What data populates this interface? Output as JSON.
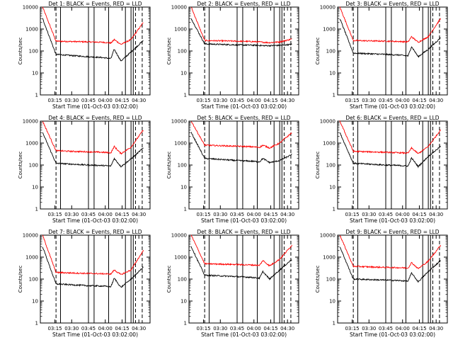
{
  "figure": {
    "background": "#ffffff"
  },
  "common": {
    "xlabel": "Start Time (01-Oct-03 03:02:00)",
    "ylabel": "Counts/sec",
    "xticks": [
      "03:15",
      "03:30",
      "03:45",
      "04:00",
      "04:15",
      "04:30"
    ],
    "yticks": [
      "1",
      "10",
      "100",
      "1000",
      "10000"
    ],
    "colors": {
      "events": "#000000",
      "lld": "#ff0000"
    },
    "markers": {
      "dashed": [
        "03:16",
        "04:27",
        "04:33"
      ],
      "solid": [
        "03:20",
        "03:45",
        "03:50",
        "04:03",
        "04:18",
        "04:23",
        "04:25"
      ]
    }
  },
  "chart_data": [
    {
      "type": "line",
      "title": "Det 1: BLACK = Events, RED = LLD",
      "yscale": "log",
      "ylim": [
        1,
        10000
      ],
      "xlim": [
        "03:02",
        "04:40"
      ],
      "series": [
        {
          "name": "Events",
          "color": "#000000",
          "values": [
            3000,
            70,
            62,
            55,
            50,
            45,
            120,
            35,
            90,
            300
          ]
        },
        {
          "name": "LLD",
          "color": "#ff0000",
          "values": [
            10000,
            280,
            270,
            260,
            250,
            230,
            330,
            200,
            330,
            2000
          ]
        }
      ]
    },
    {
      "type": "line",
      "title": "Det 2: BLACK = Events, RED = LLD",
      "yscale": "log",
      "ylim": [
        1,
        10000
      ],
      "xlim": [
        "03:02",
        "04:40"
      ],
      "series": [
        {
          "name": "Events",
          "color": "#000000",
          "values": [
            3000,
            210,
            200,
            190,
            185,
            180,
            175,
            175,
            180,
            200
          ]
        },
        {
          "name": "LLD",
          "color": "#ff0000",
          "values": [
            10000,
            300,
            290,
            280,
            270,
            260,
            250,
            240,
            260,
            350
          ]
        }
      ]
    },
    {
      "type": "line",
      "title": "Det 3: BLACK = Events, RED = LLD",
      "yscale": "log",
      "ylim": [
        1,
        10000
      ],
      "xlim": [
        "03:02",
        "04:40"
      ],
      "series": [
        {
          "name": "Events",
          "color": "#000000",
          "values": [
            3000,
            80,
            75,
            70,
            65,
            60,
            160,
            55,
            120,
            400
          ]
        },
        {
          "name": "LLD",
          "color": "#ff0000",
          "values": [
            10000,
            300,
            290,
            280,
            270,
            260,
            450,
            250,
            450,
            3000
          ]
        }
      ]
    },
    {
      "type": "line",
      "title": "Det 4: BLACK = Events, RED = LLD",
      "yscale": "log",
      "ylim": [
        1,
        10000
      ],
      "xlim": [
        "03:02",
        "04:40"
      ],
      "series": [
        {
          "name": "Events",
          "color": "#000000",
          "values": [
            3000,
            120,
            110,
            100,
            95,
            90,
            200,
            85,
            190,
            600
          ]
        },
        {
          "name": "LLD",
          "color": "#ff0000",
          "values": [
            10000,
            450,
            420,
            400,
            380,
            360,
            700,
            330,
            650,
            4000
          ]
        }
      ]
    },
    {
      "type": "line",
      "title": "Det 5: BLACK = Events, RED = LLD",
      "yscale": "log",
      "ylim": [
        1,
        10000
      ],
      "xlim": [
        "03:02",
        "04:40"
      ],
      "series": [
        {
          "name": "Events",
          "color": "#000000",
          "values": [
            3000,
            200,
            180,
            160,
            150,
            140,
            200,
            130,
            160,
            300
          ]
        },
        {
          "name": "LLD",
          "color": "#ff0000",
          "values": [
            10000,
            800,
            760,
            720,
            680,
            640,
            800,
            600,
            1000,
            3000
          ]
        }
      ]
    },
    {
      "type": "line",
      "title": "Det 6: BLACK = Events, RED = LLD",
      "yscale": "log",
      "ylim": [
        1,
        10000
      ],
      "xlim": [
        "03:02",
        "04:40"
      ],
      "series": [
        {
          "name": "Events",
          "color": "#000000",
          "values": [
            3000,
            120,
            110,
            100,
            95,
            90,
            210,
            85,
            250,
            700
          ]
        },
        {
          "name": "LLD",
          "color": "#ff0000",
          "values": [
            10000,
            420,
            400,
            380,
            360,
            350,
            600,
            330,
            700,
            4000
          ]
        }
      ]
    },
    {
      "type": "line",
      "title": "Det 7: BLACK = Events, RED = LLD",
      "yscale": "log",
      "ylim": [
        1,
        10000
      ],
      "xlim": [
        "03:02",
        "04:40"
      ],
      "series": [
        {
          "name": "Events",
          "color": "#000000",
          "values": [
            3000,
            60,
            55,
            50,
            48,
            45,
            110,
            42,
            100,
            350
          ]
        },
        {
          "name": "LLD",
          "color": "#ff0000",
          "values": [
            10000,
            200,
            190,
            180,
            175,
            170,
            260,
            160,
            260,
            2000
          ]
        }
      ]
    },
    {
      "type": "line",
      "title": "Det 8: BLACK = Events, RED = LLD",
      "yscale": "log",
      "ylim": [
        1,
        10000
      ],
      "xlim": [
        "03:02",
        "04:40"
      ],
      "series": [
        {
          "name": "Events",
          "color": "#000000",
          "values": [
            3000,
            150,
            140,
            130,
            120,
            110,
            220,
            100,
            260,
            800
          ]
        },
        {
          "name": "LLD",
          "color": "#ff0000",
          "values": [
            10000,
            500,
            480,
            460,
            440,
            420,
            700,
            400,
            800,
            3500
          ]
        }
      ]
    },
    {
      "type": "line",
      "title": "Det 9: BLACK = Events, RED = LLD",
      "yscale": "log",
      "ylim": [
        1,
        10000
      ],
      "xlim": [
        "03:02",
        "04:40"
      ],
      "series": [
        {
          "name": "Events",
          "color": "#000000",
          "values": [
            3000,
            100,
            95,
            90,
            85,
            80,
            190,
            75,
            220,
            700
          ]
        },
        {
          "name": "LLD",
          "color": "#ff0000",
          "values": [
            10000,
            380,
            360,
            340,
            330,
            320,
            560,
            300,
            650,
            3500
          ]
        }
      ]
    }
  ]
}
